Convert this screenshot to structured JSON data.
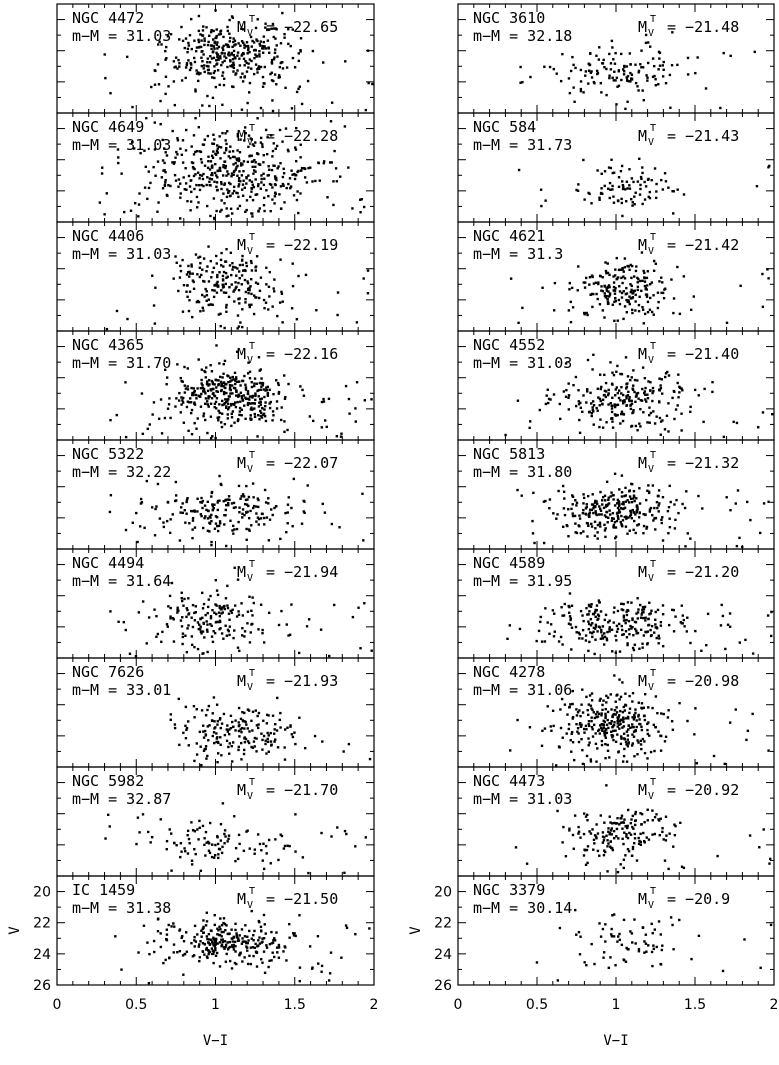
{
  "chart_data": [
    {
      "type": "scatter",
      "column": "left",
      "xlabel": "V−I",
      "ylabel": "V",
      "xlim": [
        0,
        2
      ],
      "ylim": [
        26,
        19
      ],
      "x_ticks": [
        "0",
        "0.5",
        "1",
        "1.5",
        "2"
      ],
      "y_ticks": [
        "20",
        "22",
        "24",
        "26"
      ],
      "mv_symbol": "M",
      "mv_sub": "V",
      "mv_sup": "T",
      "panels": [
        {
          "name": "NGC 4472",
          "modulus_label": "m−M = 31.03",
          "mv_label": "= −22.65",
          "points": {
            "n": 380,
            "cx": 1.1,
            "sx": 0.2,
            "cy": 22.3,
            "sy": 1.1,
            "seed": 11
          }
        },
        {
          "name": "NGC 4649",
          "modulus_label": "m−M = 31.03",
          "mv_label": "= −22.28",
          "points": {
            "n": 470,
            "cx": 1.1,
            "sx": 0.28,
            "cy": 22.6,
            "sy": 1.3,
            "seed": 23
          }
        },
        {
          "name": "NGC 4406",
          "modulus_label": "m−M = 31.03",
          "mv_label": "= −22.19",
          "points": {
            "n": 230,
            "cx": 1.05,
            "sx": 0.18,
            "cy": 23.0,
            "sy": 1.1,
            "seed": 37
          }
        },
        {
          "name": "NGC 4365",
          "modulus_label": "m−M = 31.70",
          "mv_label": "= −22.16",
          "points": {
            "n": 400,
            "cx": 1.08,
            "sx": 0.2,
            "cy": 23.2,
            "sy": 1.0,
            "seed": 41
          }
        },
        {
          "name": "NGC 5322",
          "modulus_label": "m−M = 32.22",
          "mv_label": "= −22.07",
          "points": {
            "n": 210,
            "cx": 1.05,
            "sx": 0.25,
            "cy": 23.6,
            "sy": 0.9,
            "seed": 53
          }
        },
        {
          "name": "NGC 4494",
          "modulus_label": "m−M = 31.64",
          "mv_label": "= −21.94",
          "points": {
            "n": 200,
            "cx": 0.95,
            "sx": 0.17,
            "cy": 23.4,
            "sy": 1.0,
            "seed": 67
          }
        },
        {
          "name": "NGC 7626",
          "modulus_label": "m−M = 33.01",
          "mv_label": "= −21.93",
          "points": {
            "n": 190,
            "cx": 1.1,
            "sx": 0.2,
            "cy": 23.8,
            "sy": 0.9,
            "seed": 71
          }
        },
        {
          "name": "NGC 5982",
          "modulus_label": "m−M = 32.87",
          "mv_label": "= −21.70",
          "points": {
            "n": 120,
            "cx": 1.05,
            "sx": 0.25,
            "cy": 24.0,
            "sy": 0.8,
            "seed": 83
          }
        },
        {
          "name": "IC 1459",
          "modulus_label": "m−M = 31.38",
          "mv_label": "= −21.50",
          "points": {
            "n": 300,
            "cx": 1.08,
            "sx": 0.22,
            "cy": 23.3,
            "sy": 0.8,
            "seed": 97
          }
        }
      ]
    },
    {
      "type": "scatter",
      "column": "right",
      "xlabel": "V−I",
      "ylabel": "V",
      "xlim": [
        0,
        2
      ],
      "ylim": [
        26,
        19
      ],
      "x_ticks": [
        "0",
        "0.5",
        "1",
        "1.5",
        "2"
      ],
      "y_ticks": [
        "20",
        "22",
        "24",
        "26"
      ],
      "mv_symbol": "M",
      "mv_sub": "V",
      "mv_sup": "T",
      "panels": [
        {
          "name": "NGC 3610",
          "modulus_label": "m−M = 32.18",
          "mv_label": "= −21.48",
          "points": {
            "n": 150,
            "cx": 1.0,
            "sx": 0.22,
            "cy": 23.4,
            "sy": 1.0,
            "seed": 101
          }
        },
        {
          "name": "NGC 584",
          "modulus_label": "m−M = 31.73",
          "mv_label": "= −21.43",
          "points": {
            "n": 100,
            "cx": 1.05,
            "sx": 0.15,
            "cy": 23.6,
            "sy": 0.9,
            "seed": 113
          }
        },
        {
          "name": "NGC 4621",
          "modulus_label": "m−M = 31.3",
          "mv_label": "= −21.42",
          "points": {
            "n": 220,
            "cx": 1.05,
            "sx": 0.16,
            "cy": 23.4,
            "sy": 1.0,
            "seed": 127
          }
        },
        {
          "name": "NGC 4552",
          "modulus_label": "m−M = 31.03",
          "mv_label": "= −21.40",
          "points": {
            "n": 260,
            "cx": 1.05,
            "sx": 0.2,
            "cy": 23.3,
            "sy": 1.0,
            "seed": 131
          }
        },
        {
          "name": "NGC 5813",
          "modulus_label": "m−M = 31.80",
          "mv_label": "= −21.32",
          "points": {
            "n": 300,
            "cx": 1.0,
            "sx": 0.2,
            "cy": 23.5,
            "sy": 0.9,
            "seed": 149
          }
        },
        {
          "name": "NGC 4589",
          "modulus_label": "m−M = 31.95",
          "mv_label": "= −21.20",
          "points": {
            "n": 260,
            "cx": 1.0,
            "sx": 0.2,
            "cy": 23.8,
            "sy": 0.8,
            "seed": 157
          }
        },
        {
          "name": "NGC 4278",
          "modulus_label": "m−M = 31.06",
          "mv_label": "= −20.98",
          "points": {
            "n": 330,
            "cx": 1.0,
            "sx": 0.16,
            "cy": 23.2,
            "sy": 1.1,
            "seed": 163
          }
        },
        {
          "name": "NGC 4473",
          "modulus_label": "m−M = 31.03",
          "mv_label": "= −20.92",
          "points": {
            "n": 180,
            "cx": 1.05,
            "sx": 0.17,
            "cy": 23.4,
            "sy": 0.9,
            "seed": 173
          }
        },
        {
          "name": "NGC 3379",
          "modulus_label": "m−M = 30.14",
          "mv_label": "= −20.9",
          "points": {
            "n": 80,
            "cx": 1.05,
            "sx": 0.2,
            "cy": 23.0,
            "sy": 1.0,
            "seed": 181
          }
        }
      ]
    }
  ]
}
